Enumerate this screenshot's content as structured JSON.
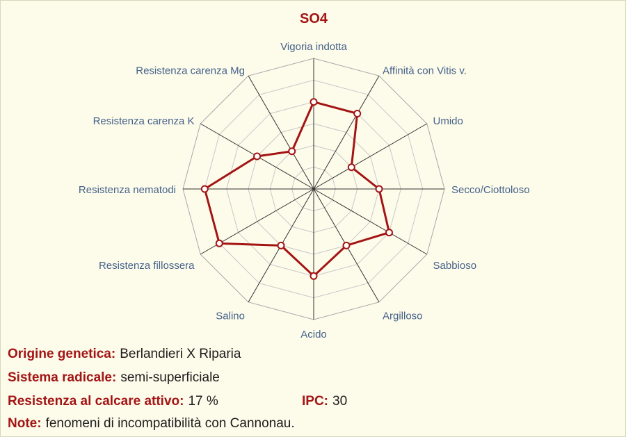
{
  "colors": {
    "accent": "#a31515",
    "axis_label": "#44628a",
    "background": "#fdfbea",
    "grid": "#c8c8c8",
    "series": "#a31515"
  },
  "chart_data": {
    "type": "radar",
    "title": "SO4",
    "categories": [
      "Vigoria indotta",
      "Affinità con Vitis v.",
      "Umido",
      "Secco/Ciottoloso",
      "Sabbioso",
      "Argilloso",
      "Acido",
      "Salino",
      "Resistenza fillossera",
      "Resistenza nematodi",
      "Resistenza carenza K",
      "Resistenza carenza Mg"
    ],
    "series": [
      {
        "values": [
          4,
          4,
          2,
          3,
          4,
          3,
          4,
          3,
          5,
          5,
          3,
          2
        ]
      }
    ],
    "rlim": [
      0,
      6
    ],
    "grid": true,
    "legend": "none"
  },
  "info": {
    "origin_label": "Origine genetica:",
    "origin_value": "Berlandieri X Riparia",
    "root_label": "Sistema radicale:",
    "root_value": "semi-superficiale",
    "lime_label": "Resistenza al calcare attivo:",
    "lime_value": "17 %",
    "ipc_label": "IPC:",
    "ipc_value": "30",
    "notes_label": "Note:",
    "notes_value": "fenomeni di incompatibilità con Cannonau."
  }
}
